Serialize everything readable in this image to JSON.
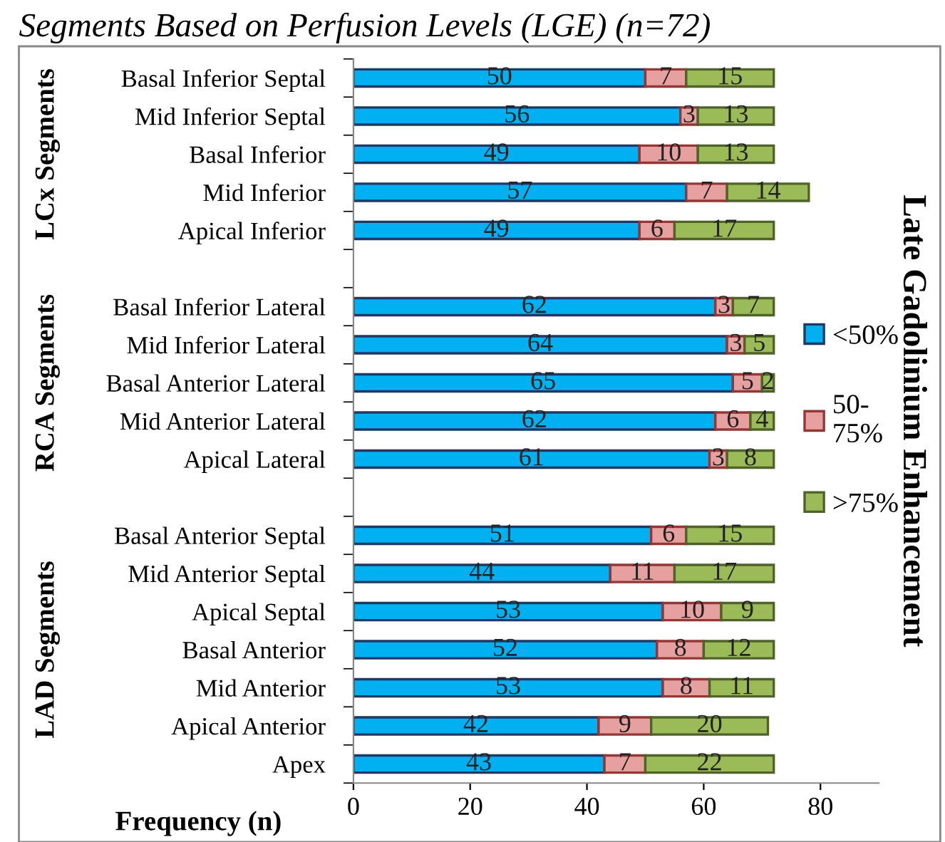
{
  "chart_data": {
    "type": "bar",
    "orientation": "horizontal",
    "stacked": true,
    "title": "Segments Based on Perfusion Levels (LGE) (n=72)",
    "xlabel": "Frequency (n)",
    "legend_title": "Late Gadolinium Enhancement",
    "annotations": [
      "LCx Segments",
      "RCA Segments",
      "LAD Segments"
    ],
    "categories": [
      "Basal Inferior Septal",
      "Mid Inferior Septal",
      "Basal Inferior",
      "Mid Inferior",
      "Apical Inferior",
      null,
      "Basal Inferior Lateral",
      "Mid Inferior Lateral",
      "Basal Anterior Lateral",
      "Mid Anterior Lateral",
      "Apical Lateral",
      null,
      "Basal Anterior Septal",
      "Mid Anterior Septal",
      "Apical Septal",
      "Basal Anterior",
      "Mid Anterior",
      "Apical Anterior",
      "Apex"
    ],
    "series": [
      {
        "name": "<50%",
        "color": "#00b0f0",
        "values": [
          50,
          56,
          49,
          57,
          49,
          null,
          62,
          64,
          65,
          62,
          61,
          null,
          51,
          44,
          53,
          52,
          53,
          42,
          43
        ]
      },
      {
        "name": "50-75%",
        "color": "#e6a0a0",
        "values": [
          7,
          3,
          10,
          7,
          6,
          null,
          3,
          3,
          5,
          6,
          3,
          null,
          6,
          11,
          10,
          8,
          8,
          9,
          7
        ]
      },
      {
        "name": ">75%",
        "color": "#9bbb59",
        "values": [
          15,
          13,
          13,
          14,
          17,
          null,
          7,
          5,
          2,
          4,
          8,
          null,
          15,
          17,
          9,
          12,
          11,
          20,
          22
        ]
      }
    ],
    "xlim": [
      0,
      90
    ],
    "xticks": [
      0,
      20,
      40,
      60,
      80
    ],
    "data_labels": true,
    "legend": "right",
    "grid": false
  }
}
